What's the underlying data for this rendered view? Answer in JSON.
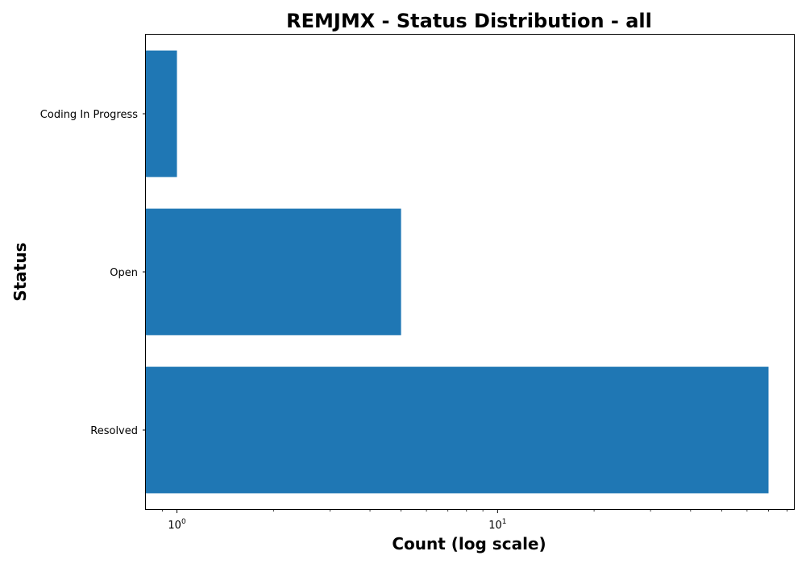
{
  "chart_data": {
    "type": "bar",
    "orientation": "horizontal",
    "title": "REMJMX - Status Distribution - all",
    "xlabel": "Count (log scale)",
    "ylabel": "Status",
    "x_scale": "log",
    "xlim": [
      0.8,
      84
    ],
    "categories": [
      "Coding In Progress",
      "Open",
      "Resolved"
    ],
    "values": [
      1,
      5,
      70
    ],
    "x_ticks": [
      {
        "value": 1,
        "base": "10",
        "exponent": "0"
      },
      {
        "value": 10,
        "base": "10",
        "exponent": "1"
      }
    ],
    "bar_color": "#1f77b4",
    "grid": false,
    "legend": "none"
  }
}
